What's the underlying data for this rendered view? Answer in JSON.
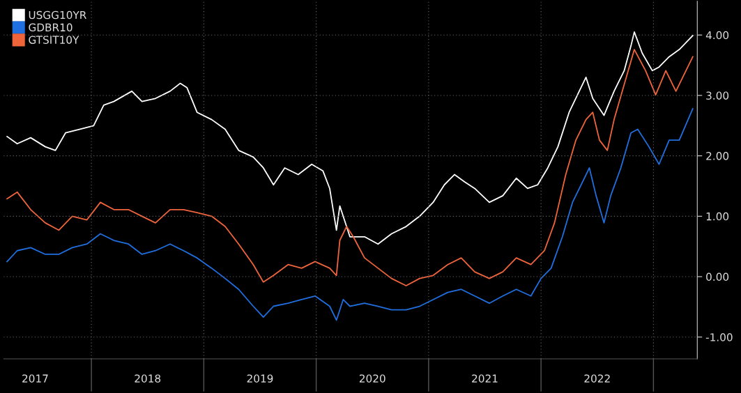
{
  "chart_data": {
    "type": "line",
    "xlim": [
      2017.22,
      2023.39
    ],
    "ylim": [
      -1.36,
      4.56
    ],
    "xticks": [
      {
        "value": 2017.5,
        "label": "2017"
      },
      {
        "value": 2018,
        "label": null
      },
      {
        "value": 2018.5,
        "label": "2018"
      },
      {
        "value": 2019,
        "label": null
      },
      {
        "value": 2019.5,
        "label": "2019"
      },
      {
        "value": 2020,
        "label": null
      },
      {
        "value": 2020.5,
        "label": "2020"
      },
      {
        "value": 2021,
        "label": null
      },
      {
        "value": 2021.5,
        "label": "2021"
      },
      {
        "value": 2022,
        "label": null
      },
      {
        "value": 2022.5,
        "label": "2022"
      },
      {
        "value": 2023,
        "label": null
      }
    ],
    "yticks": [
      {
        "value": -1,
        "label": "-1.00"
      },
      {
        "value": 0,
        "label": "0.00"
      },
      {
        "value": 1,
        "label": "1.00"
      },
      {
        "value": 2,
        "label": "2.00"
      },
      {
        "value": 3,
        "label": "3.00"
      },
      {
        "value": 4,
        "label": "4.00"
      }
    ],
    "grid": true,
    "legend": "top left",
    "marker": "none",
    "line_style": "solid",
    "series": [
      {
        "name": "USGG10YR",
        "color": "#ffffff",
        "x": [
          2017.25,
          2017.34,
          2017.46,
          2017.59,
          2017.68,
          2017.77,
          2017.9,
          2018.02,
          2018.11,
          2018.2,
          2018.36,
          2018.45,
          2018.57,
          2018.7,
          2018.79,
          2018.85,
          2018.94,
          2019.07,
          2019.19,
          2019.31,
          2019.44,
          2019.53,
          2019.62,
          2019.72,
          2019.84,
          2019.96,
          2020.06,
          2020.12,
          2020.18,
          2020.21,
          2020.3,
          2020.43,
          2020.55,
          2020.67,
          2020.8,
          2020.92,
          2021.04,
          2021.14,
          2021.23,
          2021.32,
          2021.41,
          2021.54,
          2021.66,
          2021.78,
          2021.88,
          2021.97,
          2022.06,
          2022.15,
          2022.25,
          2022.34,
          2022.4,
          2022.46,
          2022.56,
          2022.65,
          2022.74,
          2022.8,
          2022.83,
          2022.9,
          2022.99,
          2023.05,
          2023.14,
          2023.23,
          2023.35
        ],
        "values": [
          2.32,
          2.2,
          2.3,
          2.15,
          2.09,
          2.38,
          2.44,
          2.5,
          2.84,
          2.9,
          3.07,
          2.9,
          2.95,
          3.07,
          3.2,
          3.13,
          2.72,
          2.6,
          2.44,
          2.09,
          1.98,
          1.8,
          1.52,
          1.8,
          1.69,
          1.86,
          1.75,
          1.46,
          0.77,
          1.17,
          0.66,
          0.66,
          0.54,
          0.71,
          0.83,
          1.0,
          1.23,
          1.52,
          1.69,
          1.57,
          1.46,
          1.23,
          1.34,
          1.63,
          1.46,
          1.52,
          1.8,
          2.15,
          2.72,
          3.07,
          3.3,
          2.95,
          2.67,
          3.07,
          3.41,
          3.82,
          4.05,
          3.7,
          3.41,
          3.47,
          3.64,
          3.76,
          3.99
        ]
      },
      {
        "name": "GDBR10",
        "color": "#1f6fe0",
        "x": [
          2017.25,
          2017.34,
          2017.46,
          2017.59,
          2017.71,
          2017.83,
          2017.96,
          2018.08,
          2018.2,
          2018.33,
          2018.45,
          2018.57,
          2018.7,
          2018.82,
          2018.94,
          2019.07,
          2019.19,
          2019.31,
          2019.44,
          2019.53,
          2019.62,
          2019.75,
          2019.87,
          2019.99,
          2020.12,
          2020.18,
          2020.24,
          2020.3,
          2020.43,
          2020.55,
          2020.67,
          2020.8,
          2020.92,
          2021.04,
          2021.17,
          2021.29,
          2021.41,
          2021.54,
          2021.66,
          2021.78,
          2021.91,
          2022.0,
          2022.09,
          2022.19,
          2022.28,
          2022.37,
          2022.43,
          2022.49,
          2022.56,
          2022.62,
          2022.71,
          2022.8,
          2022.86,
          2022.96,
          2023.05,
          2023.14,
          2023.23,
          2023.35
        ],
        "values": [
          0.25,
          0.43,
          0.48,
          0.37,
          0.37,
          0.48,
          0.54,
          0.71,
          0.6,
          0.54,
          0.37,
          0.43,
          0.54,
          0.43,
          0.31,
          0.14,
          -0.03,
          -0.21,
          -0.49,
          -0.67,
          -0.49,
          -0.44,
          -0.38,
          -0.32,
          -0.49,
          -0.72,
          -0.38,
          -0.49,
          -0.44,
          -0.49,
          -0.55,
          -0.55,
          -0.49,
          -0.38,
          -0.26,
          -0.21,
          -0.32,
          -0.44,
          -0.32,
          -0.21,
          -0.32,
          -0.03,
          0.14,
          0.66,
          1.23,
          1.57,
          1.8,
          1.34,
          0.89,
          1.34,
          1.8,
          2.38,
          2.44,
          2.15,
          1.86,
          2.26,
          2.26,
          2.78
        ]
      },
      {
        "name": "GTSIT10Y",
        "color": "#f0643c",
        "x": [
          2017.25,
          2017.34,
          2017.46,
          2017.59,
          2017.71,
          2017.83,
          2017.96,
          2018.08,
          2018.2,
          2018.33,
          2018.45,
          2018.57,
          2018.7,
          2018.82,
          2018.94,
          2019.07,
          2019.19,
          2019.31,
          2019.44,
          2019.53,
          2019.62,
          2019.75,
          2019.87,
          2019.99,
          2020.12,
          2020.18,
          2020.21,
          2020.27,
          2020.33,
          2020.43,
          2020.55,
          2020.67,
          2020.8,
          2020.92,
          2021.04,
          2021.17,
          2021.29,
          2021.41,
          2021.54,
          2021.66,
          2021.78,
          2021.91,
          2022.03,
          2022.12,
          2022.22,
          2022.31,
          2022.4,
          2022.46,
          2022.52,
          2022.59,
          2022.65,
          2022.74,
          2022.83,
          2022.93,
          2023.02,
          2023.11,
          2023.2,
          2023.35
        ],
        "values": [
          1.29,
          1.4,
          1.11,
          0.89,
          0.77,
          1.0,
          0.94,
          1.23,
          1.11,
          1.11,
          1.0,
          0.89,
          1.11,
          1.11,
          1.06,
          1.0,
          0.83,
          0.54,
          0.2,
          -0.09,
          0.02,
          0.2,
          0.14,
          0.25,
          0.14,
          0.02,
          0.6,
          0.83,
          0.66,
          0.31,
          0.14,
          -0.03,
          -0.15,
          -0.03,
          0.02,
          0.2,
          0.31,
          0.08,
          -0.03,
          0.08,
          0.31,
          0.2,
          0.43,
          0.89,
          1.69,
          2.26,
          2.6,
          2.72,
          2.26,
          2.09,
          2.6,
          3.18,
          3.76,
          3.41,
          3.01,
          3.41,
          3.07,
          3.64
        ]
      }
    ]
  }
}
